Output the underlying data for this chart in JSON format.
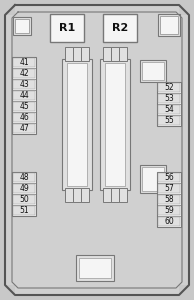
{
  "bg_color": "#c8c8c8",
  "inner_bg": "#d0d0d0",
  "light_gray": "#e0e0e0",
  "white": "#f5f5f5",
  "border_dark": "#555555",
  "border_med": "#777777",
  "border_light": "#999999",
  "text_color": "#111111",
  "figsize": [
    1.94,
    3.0
  ],
  "dpi": 100,
  "left_fuses_top": [
    "41",
    "42",
    "43",
    "44",
    "45",
    "46",
    "47"
  ],
  "left_fuses_bottom": [
    "48",
    "49",
    "50",
    "51"
  ],
  "right_fuses_top": [
    "52",
    "53",
    "54",
    "55"
  ],
  "right_fuses_bottom": [
    "56",
    "57",
    "58",
    "59",
    "60"
  ],
  "relays": [
    "R1",
    "R2"
  ]
}
